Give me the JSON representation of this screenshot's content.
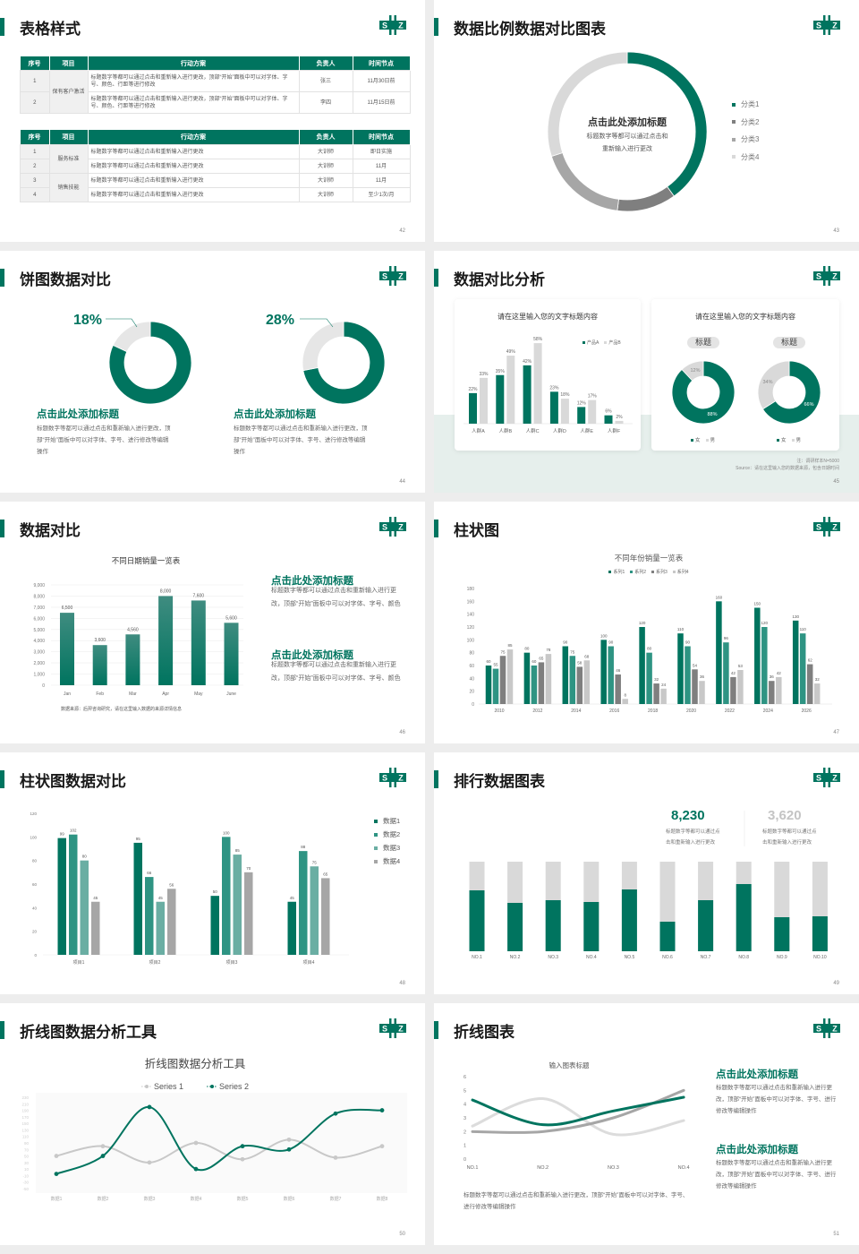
{
  "colors": {
    "green": "#00745f",
    "green2": "#2e9483",
    "green3": "#6aaea3",
    "gray_dark": "#7f7f7f",
    "gray": "#a6a6a6",
    "gray_light": "#d9d9d9",
    "gray_lighter": "#c8c8c8",
    "band": "#e6efec"
  },
  "logo": {
    "left": "S",
    "right": "Z"
  },
  "slides": {
    "s42": {
      "title": "表格样式",
      "page": "42",
      "tables": [
        {
          "headers": [
            "序号",
            "项目",
            "行动方案",
            "负责人",
            "时间节点"
          ],
          "groups": [
            {
              "item": "保有客户激活",
              "rows": [
                {
                  "no": "1",
                  "plan": "标题数字等都可以通过点击和重新输入进行更改，顶部“开始”面板中可以对字体、字号、颜色、行距等进行修改",
                  "owner": "张三",
                  "time": "11月30日前"
                },
                {
                  "no": "2",
                  "plan": "标题数字等都可以通过点击和重新输入进行更改，顶部“开始”面板中可以对字体、字号、颜色、行距等进行修改",
                  "owner": "李四",
                  "time": "11月15日前"
                }
              ]
            }
          ]
        },
        {
          "headers": [
            "序号",
            "项目",
            "行动方案",
            "负责人",
            "时间节点"
          ],
          "groups": [
            {
              "item": "服务标准",
              "rows": [
                {
                  "no": "1",
                  "plan": "标题数字等都可以通过点击和重新输入进行更改",
                  "owner": "大训师",
                  "time": "即日实施"
                },
                {
                  "no": "2",
                  "plan": "标题数字等都可以通过点击和重新输入进行更改",
                  "owner": "大训师",
                  "time": "11月"
                }
              ]
            },
            {
              "item": "销售技能",
              "rows": [
                {
                  "no": "3",
                  "plan": "标题数字等都可以通过点击和重新输入进行更改",
                  "owner": "大训师",
                  "time": "11月"
                },
                {
                  "no": "4",
                  "plan": "标题数字等都可以通过点击和重新输入进行更改",
                  "owner": "大训师",
                  "time": "至少1次/月"
                }
              ]
            }
          ]
        }
      ]
    },
    "s43": {
      "title": "数据比例数据对比图表",
      "page": "43",
      "center_title": "点击此处添加标题",
      "center_desc": [
        "标题数字等都可以通过点击和",
        "重新输入进行更改"
      ],
      "chart_data": {
        "type": "pie",
        "donut": true,
        "categories": [
          "分类1",
          "分类2",
          "分类3",
          "分类4"
        ],
        "values": [
          40,
          12,
          18,
          30
        ],
        "colors": [
          "#00745f",
          "#7f7f7f",
          "#a6a6a6",
          "#d9d9d9"
        ],
        "legend": "right"
      }
    },
    "s44": {
      "title": "饼图数据对比",
      "page": "44",
      "items": [
        {
          "label": "18%",
          "heading": "点击此处添加标题",
          "desc": "标题数字等都可以通过点击和重新输入进行更改，顶部“开始”面板中可以对字体、字号、进行修改等编辑操作",
          "chart_data": {
            "type": "pie",
            "donut": true,
            "values": [
              82,
              18
            ],
            "colors": [
              "#00745f",
              "#e6e6e6"
            ]
          }
        },
        {
          "label": "28%",
          "heading": "点击此处添加标题",
          "desc": "标题数字等都可以通过点击和重新输入进行更改，顶部“开始”面板中可以对字体、字号、进行修改等编辑操作",
          "chart_data": {
            "type": "pie",
            "donut": true,
            "values": [
              72,
              28
            ],
            "colors": [
              "#00745f",
              "#e6e6e6"
            ]
          }
        }
      ]
    },
    "s45": {
      "title": "数据对比分析",
      "page": "45",
      "bar_card": {
        "title": "请在这里输入您的文字标题内容",
        "chart_data": {
          "type": "bar",
          "categories": [
            "人群A",
            "人群B",
            "人群C",
            "人群D",
            "人群E",
            "人群F"
          ],
          "series": [
            {
              "name": "产品A",
              "values": [
                22,
                35,
                42,
                23,
                12,
                6
              ],
              "labels": [
                "22%",
                "35%",
                "42%",
                "23%",
                "12%",
                "6%"
              ]
            },
            {
              "name": "产品B",
              "values": [
                33,
                49,
                58,
                18,
                17,
                2
              ],
              "labels": [
                "33%",
                "49%",
                "58%",
                "18%",
                "17%",
                "2%"
              ]
            }
          ],
          "ylim": [
            0,
            60
          ],
          "legend": "top-right"
        }
      },
      "donut_card": {
        "title": "请在这里输入您的文字标题内容",
        "donuts": [
          {
            "label": "标题",
            "legend": [
              "女",
              "男"
            ],
            "chart_data": {
              "type": "pie",
              "donut": true,
              "categories": [
                "女",
                "男"
              ],
              "values": [
                88,
                12
              ],
              "labels": [
                "88%",
                "12%"
              ]
            }
          },
          {
            "label": "标题",
            "legend": [
              "女",
              "男"
            ],
            "chart_data": {
              "type": "pie",
              "donut": true,
              "categories": [
                "女",
                "男"
              ],
              "values": [
                66,
                34
              ],
              "labels": [
                "66%",
                "34%"
              ]
            }
          }
        ]
      },
      "notes": [
        "注：调研样本N=5000",
        "Source：请在这里输入您的数据来源，包含日期时间"
      ]
    },
    "s46": {
      "title": "数据对比",
      "page": "46",
      "chart_data": {
        "type": "bar",
        "title": "不同日期销量一览表",
        "categories": [
          "Jan",
          "Feb",
          "Mar",
          "Apr",
          "May",
          "June"
        ],
        "values": [
          6500,
          3600,
          4560,
          8000,
          7600,
          5600
        ],
        "labels": [
          "6,500",
          "3,600",
          "4,560",
          "8,000",
          "7,600",
          "5,600"
        ],
        "ylim": [
          0,
          9000
        ],
        "yticks": [
          "0",
          "1,000",
          "2,000",
          "3,000",
          "4,000",
          "5,000",
          "6,000",
          "7,000",
          "8,000",
          "9,000"
        ],
        "grid": true
      },
      "source": "数据来源：后羿咨询研究，请在这里输入数据的来源详情信息",
      "blocks": [
        {
          "heading": "点击此处添加标题",
          "desc": "标题数字等都可以通过点击和重新输入进行更改，顶部“开始”面板中可以对字体、字号、颜色"
        },
        {
          "heading": "点击此处添加标题",
          "desc": "标题数字等都可以通过点击和重新输入进行更改，顶部“开始”面板中可以对字体、字号、颜色"
        }
      ]
    },
    "s47": {
      "title": "柱状图",
      "page": "47",
      "chart_data": {
        "type": "bar",
        "title": "不同年份销量一览表",
        "categories": [
          "2010",
          "2012",
          "2014",
          "2016",
          "2018",
          "2020",
          "2022",
          "2024",
          "2026"
        ],
        "series": [
          {
            "name": "系列1",
            "values": [
              60,
              80,
              90,
              100,
              120,
              110,
              160,
              150,
              130
            ]
          },
          {
            "name": "系列2",
            "values": [
              55,
              60,
              75,
              90,
              80,
              90,
              96,
              120,
              110
            ]
          },
          {
            "name": "系列3",
            "values": [
              75,
              65,
              58,
              46,
              32,
              54,
              42,
              36,
              62
            ]
          },
          {
            "name": "系列4",
            "values": [
              85,
              78,
              68,
              8,
              24,
              36,
              53,
              42,
              32
            ]
          }
        ],
        "colors": [
          "#00745f",
          "#2e9483",
          "#7f7f7f",
          "#c8c8c8"
        ],
        "ylim": [
          0,
          180
        ],
        "yticks": [
          "0",
          "20",
          "40",
          "60",
          "80",
          "100",
          "120",
          "140",
          "160",
          "180"
        ],
        "legend": "top"
      }
    },
    "s48": {
      "title": "柱状图数据对比",
      "page": "48",
      "chart_data": {
        "type": "bar",
        "categories": [
          "项目1",
          "项目2",
          "项目3",
          "项目4"
        ],
        "series": [
          {
            "name": "数据1",
            "values": [
              99,
              95,
              50,
              45
            ]
          },
          {
            "name": "数据2",
            "values": [
              102,
              66,
              100,
              88
            ]
          },
          {
            "name": "数据3",
            "values": [
              80,
              45,
              85,
              75
            ]
          },
          {
            "name": "数据4",
            "values": [
              45,
              56,
              70,
              65
            ]
          }
        ],
        "colors": [
          "#00745f",
          "#2e9483",
          "#6aaea3",
          "#a6a6a6"
        ],
        "ylim": [
          0,
          120
        ],
        "yticks": [
          "0",
          "20",
          "40",
          "60",
          "80",
          "100",
          "120"
        ],
        "legend": "right"
      }
    },
    "s49": {
      "title": "排行数据图表",
      "page": "49",
      "stats": [
        {
          "value": "8,230",
          "desc": [
            "标题数字等都可以通过点",
            "击和重新输入进行更改"
          ]
        },
        {
          "value": "3,620",
          "desc": [
            "标题数字等都可以通过点",
            "击和重新输入进行更改"
          ]
        }
      ],
      "chart_data": {
        "type": "bar",
        "stacked_percent": true,
        "categories": [
          "NO.1",
          "NO.2",
          "NO.3",
          "NO.4",
          "NO.5",
          "NO.6",
          "NO.7",
          "NO.8",
          "NO.9",
          "NO.10"
        ],
        "values": [
          68,
          54,
          57,
          55,
          69,
          33,
          57,
          75,
          38,
          39
        ],
        "ylim": [
          0,
          100
        ]
      }
    },
    "s50": {
      "title": "折线图数据分析工具",
      "page": "50",
      "chart_data": {
        "type": "line",
        "smooth": true,
        "title": "折线图数据分析工具",
        "categories": [
          "数据1",
          "数据2",
          "数据3",
          "数据4",
          "数据5",
          "数据6",
          "数据7",
          "数据8"
        ],
        "series": [
          {
            "name": "Series 1",
            "values": [
              50,
              80,
              30,
              90,
              40,
              100,
              45,
              80
            ],
            "color": "#c8c8c8"
          },
          {
            "name": "Series 2",
            "values": [
              -5,
              50,
              200,
              10,
              80,
              70,
              180,
              190
            ],
            "color": "#00745f"
          }
        ],
        "ylim": [
          -50,
          230
        ],
        "yticks": [
          "-50",
          "-30",
          "-10",
          "10",
          "30",
          "50",
          "70",
          "90",
          "110",
          "130",
          "150",
          "170",
          "190",
          "210",
          "230"
        ],
        "legend": "top"
      }
    },
    "s51": {
      "title": "折线图表",
      "page": "51",
      "chart_data": {
        "type": "line",
        "smooth": true,
        "title": "输入图表标题",
        "categories": [
          "NO.1",
          "NO.2",
          "NO.3",
          "NO.4"
        ],
        "series": [
          {
            "values": [
              2.4,
              4.4,
              1.8,
              2.8
            ],
            "color": "#dcdcdc"
          },
          {
            "values": [
              2.0,
              2.0,
              3.0,
              5.0
            ],
            "color": "#a6a6a6"
          },
          {
            "values": [
              4.3,
              2.5,
              3.5,
              4.5
            ],
            "color": "#00745f"
          }
        ],
        "ylim": [
          0,
          6
        ],
        "yticks": [
          "0",
          "1",
          "2",
          "3",
          "4",
          "5",
          "6"
        ]
      },
      "caption": "标题数字等都可以通过点击和重新输入进行更改，顶部“开始”面板中可以对字体、字号、进行修改等编辑操作",
      "blocks": [
        {
          "heading": "点击此处添加标题",
          "desc": "标题数字等都可以通过点击和重新输入进行更改，顶部“开始”面板中可以对字体、字号、进行修改等编辑操作"
        },
        {
          "heading": "点击此处添加标题",
          "desc": "标题数字等都可以通过点击和重新输入进行更改，顶部“开始”面板中可以对字体、字号、进行修改等编辑操作"
        }
      ]
    }
  }
}
